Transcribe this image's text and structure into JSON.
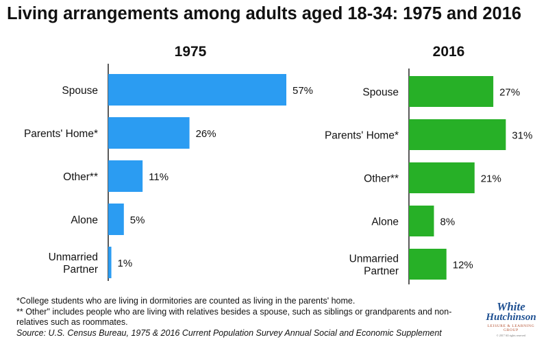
{
  "title": "Living arrangements among adults aged 18-34: 1975 and 2016",
  "chart_data": [
    {
      "type": "bar",
      "orientation": "horizontal",
      "title": "1975",
      "categories": [
        "Spouse",
        "Parents' Home*",
        "Other**",
        "Alone",
        "Unmarried Partner"
      ],
      "values": [
        57,
        26,
        11,
        5,
        1
      ],
      "value_labels": [
        "57%",
        "26%",
        "11%",
        "5%",
        "1%"
      ],
      "xlim": [
        0,
        57
      ],
      "color": "#2b9cf2"
    },
    {
      "type": "bar",
      "orientation": "horizontal",
      "title": "2016",
      "categories": [
        "Spouse",
        "Parents' Home*",
        "Other**",
        "Alone",
        "Unmarried Partner"
      ],
      "values": [
        27,
        31,
        21,
        8,
        12
      ],
      "value_labels": [
        "27%",
        "31%",
        "21%",
        "8%",
        "12%"
      ],
      "xlim": [
        0,
        57
      ],
      "color": "#27b027"
    }
  ],
  "notes": {
    "note1": "*College students who are living in dormitories are counted as living in the parents' home.",
    "note2": "** Other\" includes people who are living with relatives besides a spouse, such as siblings or grandparents and non-relatives  such as roommates.",
    "source": "Source: U.S. Census Bureau, 1975 & 2016 Current Population Survey Annual Social and Economic Supplement"
  },
  "logo": {
    "line1": "White",
    "line2": "Hutchinson",
    "line3": "LEISURE & LEARNING GROUP",
    "line4": "© 2017 All rights reserved"
  }
}
